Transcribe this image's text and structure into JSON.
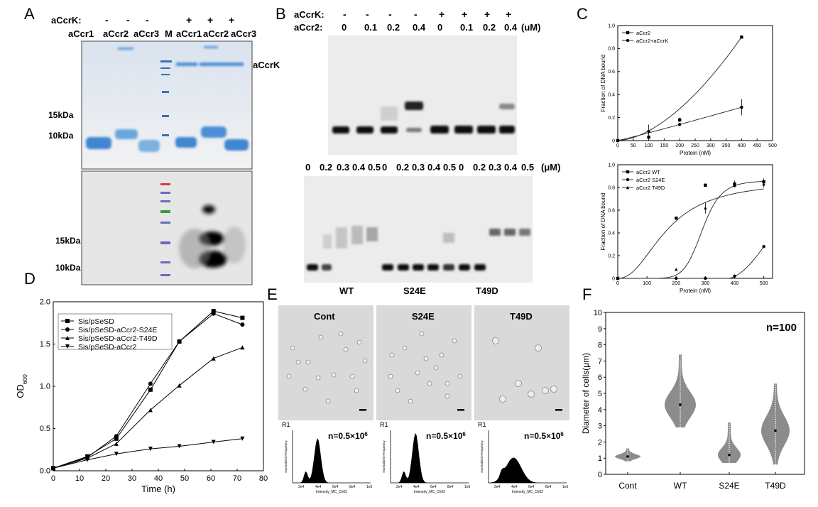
{
  "panels": {
    "A": {
      "letter": "A",
      "row_label": "aCcrK:",
      "signs": [
        "-",
        "-",
        "-",
        "+",
        "+",
        "+"
      ],
      "lanes": [
        "aCcr1",
        "aCcr2",
        "aCcr3",
        "M",
        "aCcr1",
        "aCcr2",
        "aCcr3"
      ],
      "band_label": "aCcrK",
      "markers_top": [
        "15kDa",
        "10kDa"
      ],
      "markers_bottom": [
        "15kDa",
        "10kDa"
      ]
    },
    "B": {
      "letter": "B",
      "row1_label": "aCcrK:",
      "row2_label": "aCcr2:",
      "signs": [
        "-",
        "-",
        "-",
        "-",
        "+",
        "+",
        "+",
        "+"
      ],
      "concs": [
        "0",
        "0.1",
        "0.2",
        "0.4",
        "0",
        "0.1",
        "0.2",
        "0.4"
      ],
      "unit_top": "(uM)",
      "bottom_concs": [
        "0",
        "0.2",
        "0.3",
        "0.4",
        "0.5",
        "0",
        "0.2",
        "0.3",
        "0.4",
        "0.5",
        "0",
        "0.2",
        "0.3",
        "0.4",
        "0.5"
      ],
      "unit_bottom": "(μM)",
      "groups": [
        "WT",
        "S24E",
        "T49D"
      ]
    },
    "C": {
      "letter": "C"
    },
    "D": {
      "letter": "D"
    },
    "E": {
      "letter": "E",
      "images": [
        "Cont",
        "S24E",
        "T49D"
      ],
      "region": "R1",
      "hist_n": "n=0.5×10",
      "hist_exp": "6",
      "hist_ylabel": "Normalized Frequency",
      "hist_xlabel": "Intensity_MC_Ch02",
      "hist_ticks": [
        "2e4",
        "4e4",
        "6e4",
        "8e4",
        "1e5"
      ]
    },
    "F": {
      "letter": "F"
    }
  },
  "chart_data": [
    {
      "id": "C-top",
      "type": "scatter",
      "xlabel": "Protein (nM)",
      "ylabel": "Fraction of DNA bound",
      "xlim": [
        0,
        500
      ],
      "ylim": [
        0,
        1.0
      ],
      "xticks": [
        0,
        50,
        100,
        150,
        200,
        250,
        300,
        350,
        400,
        450,
        500
      ],
      "yticks": [
        0,
        0.2,
        0.4,
        0.6,
        0.8,
        1.0
      ],
      "legend_position": "top-left",
      "series": [
        {
          "name": "aCcr2",
          "marker": "square",
          "x": [
            0,
            100,
            200,
            400
          ],
          "y": [
            0.0,
            0.03,
            0.18,
            0.9
          ]
        },
        {
          "name": "aCcr2+aCcrK",
          "marker": "circle",
          "x": [
            0,
            100,
            200,
            400
          ],
          "y": [
            0.0,
            0.08,
            0.14,
            0.29
          ]
        }
      ]
    },
    {
      "id": "C-bottom",
      "type": "scatter",
      "xlabel": "Protein (nM)",
      "ylabel": "Fraction of DNA bound",
      "xlim": [
        0,
        530
      ],
      "ylim": [
        0,
        1.0
      ],
      "xticks": [
        0,
        100,
        200,
        300,
        400,
        500
      ],
      "yticks": [
        0,
        0.2,
        0.4,
        0.6,
        0.8,
        1.0
      ],
      "legend_position": "top-left",
      "series": [
        {
          "name": "aCcr2 WT",
          "marker": "square",
          "x": [
            0,
            200,
            300,
            400,
            500
          ],
          "y": [
            0.0,
            0.53,
            0.82,
            0.83,
            0.85
          ]
        },
        {
          "name": "aCcr2 S24E",
          "marker": "circle",
          "x": [
            0,
            200,
            300,
            400,
            500
          ],
          "y": [
            0.0,
            0.0,
            0.0,
            0.02,
            0.28
          ]
        },
        {
          "name": "aCcr2 T49D",
          "marker": "triangle",
          "x": [
            0,
            200,
            300,
            400,
            500
          ],
          "y": [
            0.0,
            0.08,
            0.62,
            0.82,
            0.83
          ]
        }
      ]
    },
    {
      "id": "D",
      "type": "line",
      "xlabel": "Time (h)",
      "ylabel": "OD",
      "ylabel_sub": "600",
      "xlim": [
        0,
        80
      ],
      "ylim": [
        0,
        2.0
      ],
      "xticks": [
        0,
        10,
        20,
        30,
        40,
        50,
        60,
        70,
        80
      ],
      "yticks": [
        0.0,
        0.5,
        1.0,
        1.5,
        2.0
      ],
      "legend_position": "top-left",
      "x": [
        0,
        13,
        24,
        37,
        48,
        61,
        72
      ],
      "series": [
        {
          "name": "Sis/pSeSD",
          "marker": "square",
          "values": [
            0.03,
            0.17,
            0.38,
            0.96,
            1.53,
            1.89,
            1.81
          ]
        },
        {
          "name": "Sis/pSeSD-aCcr2-S24E",
          "marker": "circle",
          "values": [
            0.03,
            0.16,
            0.41,
            1.03,
            1.53,
            1.86,
            1.73
          ]
        },
        {
          "name": "Sis/pSeSD-aCcr2-T49D",
          "marker": "triangle",
          "values": [
            0.03,
            0.15,
            0.32,
            0.72,
            1.01,
            1.33,
            1.46
          ]
        },
        {
          "name": "Sis/pSeSD-aCcr2",
          "marker": "triangle-down",
          "values": [
            0.03,
            0.13,
            0.2,
            0.26,
            0.29,
            0.34,
            0.38
          ]
        }
      ]
    },
    {
      "id": "F",
      "type": "violin",
      "ylabel": "Diameter of cells(μm)",
      "ylim": [
        0,
        10
      ],
      "yticks": [
        0,
        1,
        2,
        3,
        4,
        5,
        6,
        7,
        8,
        9,
        10
      ],
      "annotation": "n=100",
      "categories": [
        "Cont",
        "WT",
        "S24E",
        "T49D"
      ],
      "ranges": [
        [
          0.8,
          1.6
        ],
        [
          2.9,
          7.4
        ],
        [
          0.7,
          3.2
        ],
        [
          0.6,
          5.6
        ]
      ],
      "medians": [
        1.1,
        4.3,
        1.2,
        2.7
      ]
    }
  ]
}
